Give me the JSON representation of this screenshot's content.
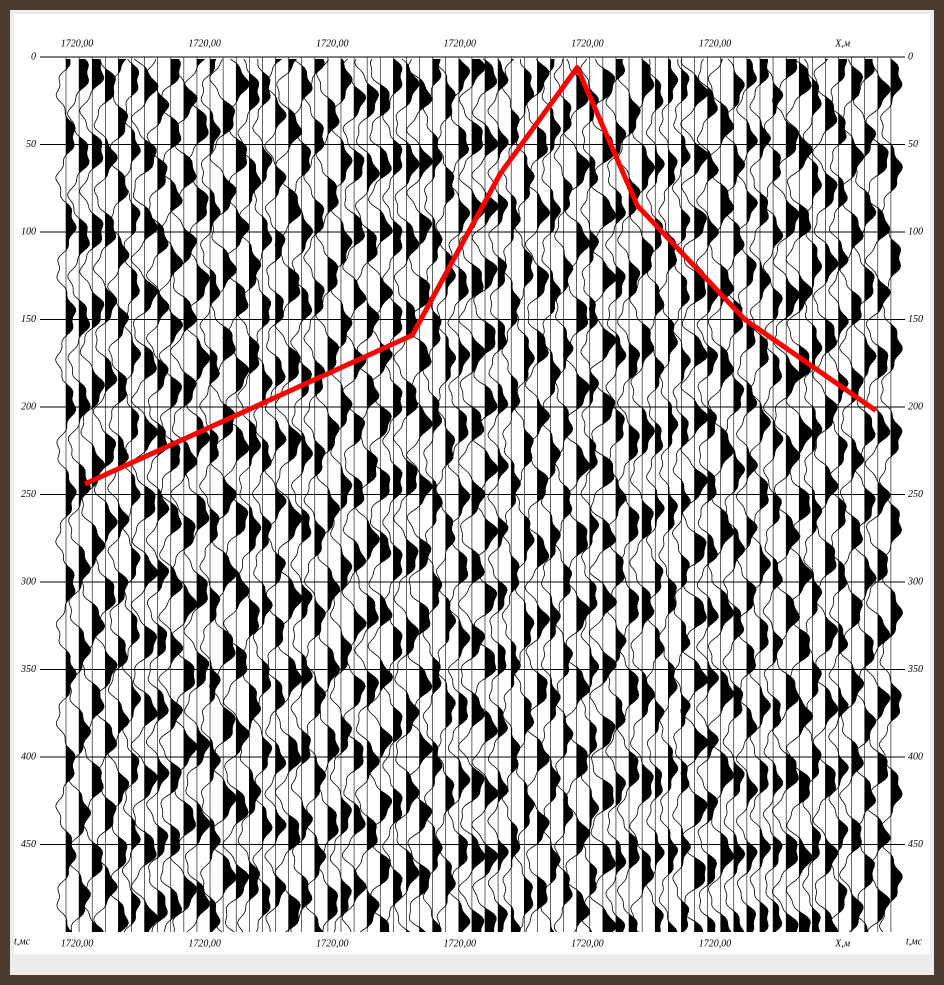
{
  "chart_data": {
    "type": "line",
    "x_labels": [
      "1720,00",
      "1720,00",
      "1720,00",
      "1720,00",
      "1720,00",
      "1720,00",
      "X,м"
    ],
    "y_label": "t,мс",
    "x": [
      1.9,
      26.9,
      33.6,
      39.5,
      44.1,
      52.3,
      62.3
    ],
    "series": [
      {
        "color": "#ff0000",
        "values": [
          244,
          159,
          67,
          6,
          85,
          150,
          202
        ]
      }
    ],
    "xlim": [
      0,
      64
    ],
    "ylim": [
      0,
      500
    ],
    "yticks": [
      0,
      50,
      100,
      150,
      200,
      250,
      300,
      350,
      400,
      450
    ],
    "y_inverted": true,
    "grid": true
  }
}
